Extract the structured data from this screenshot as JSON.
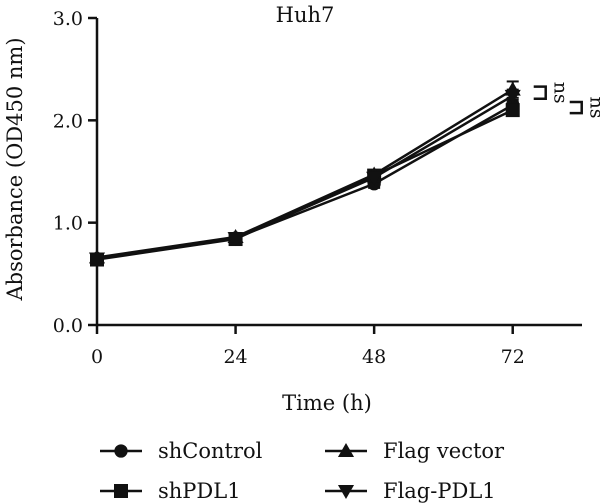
{
  "chart_data": {
    "type": "line",
    "title": "Huh7",
    "xlabel": "Time (h)",
    "ylabel": "Absorbance (OD450 nm)",
    "x": [
      0,
      24,
      48,
      72
    ],
    "x_tick_labels": [
      "0",
      "24",
      "48",
      "72"
    ],
    "xlim": [
      0,
      84
    ],
    "ylim": [
      0,
      3.0
    ],
    "y_ticks": [
      0,
      1.0,
      2.0,
      3.0
    ],
    "y_tick_labels": [
      "0.0",
      "1.0",
      "2.0",
      "3.0"
    ],
    "grid": false,
    "legend_position": "bottom",
    "series": [
      {
        "name": "shControl",
        "marker": "circle",
        "values": [
          0.65,
          0.85,
          1.38,
          2.15
        ],
        "errors": [
          0.02,
          0.03,
          0.04,
          0.05
        ]
      },
      {
        "name": "shPDL1",
        "marker": "square",
        "values": [
          0.64,
          0.84,
          1.46,
          2.1
        ],
        "errors": [
          0.02,
          0.03,
          0.04,
          0.05
        ]
      },
      {
        "name": "Flag vector",
        "marker": "triangle-up",
        "values": [
          0.66,
          0.86,
          1.47,
          2.3
        ],
        "errors": [
          0.02,
          0.03,
          0.04,
          0.08
        ]
      },
      {
        "name": "Flag-PDL1",
        "marker": "triangle-down",
        "values": [
          0.65,
          0.85,
          1.44,
          2.24
        ],
        "errors": [
          0.02,
          0.03,
          0.04,
          0.06
        ]
      }
    ],
    "annotations": [
      {
        "text": "ns",
        "compares": [
          "Flag vector",
          "Flag-PDL1"
        ]
      },
      {
        "text": "ns",
        "compares": [
          "shControl",
          "shPDL1"
        ]
      }
    ]
  }
}
